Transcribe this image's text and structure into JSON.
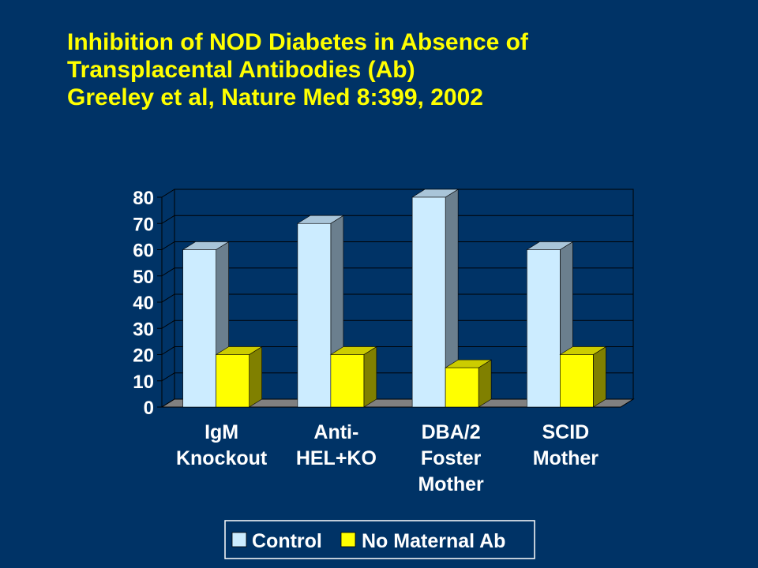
{
  "slide": {
    "title_lines": [
      "Inhibition of NOD Diabetes in Absence of",
      "Transplacental Antibodies (Ab)",
      "Greeley et al, Nature Med 8:399, 2002"
    ]
  },
  "colors": {
    "background": "#003366",
    "title": "#FFFF00",
    "control_front": "#CCECFF",
    "control_top": "#A9C5D9",
    "control_side": "#6B7F8E",
    "nomab_front": "#FFFF00",
    "nomab_top": "#CCCC00",
    "nomab_side": "#808000"
  },
  "chart_data": {
    "type": "bar",
    "categories": [
      [
        "IgM",
        "Knockout"
      ],
      [
        "Anti-",
        "HEL+KO"
      ],
      [
        "DBA/2",
        "Foster",
        "Mother"
      ],
      [
        "SCID",
        "Mother"
      ]
    ],
    "series": [
      {
        "name": "Control",
        "values": [
          60,
          70,
          80,
          60
        ]
      },
      {
        "name": "No Maternal Ab",
        "values": [
          20,
          20,
          15,
          20
        ]
      }
    ],
    "ylim": [
      0,
      80
    ],
    "yticks": [
      0,
      10,
      20,
      30,
      40,
      50,
      60,
      70,
      80
    ],
    "grid": true,
    "legend_position": "bottom-right"
  }
}
